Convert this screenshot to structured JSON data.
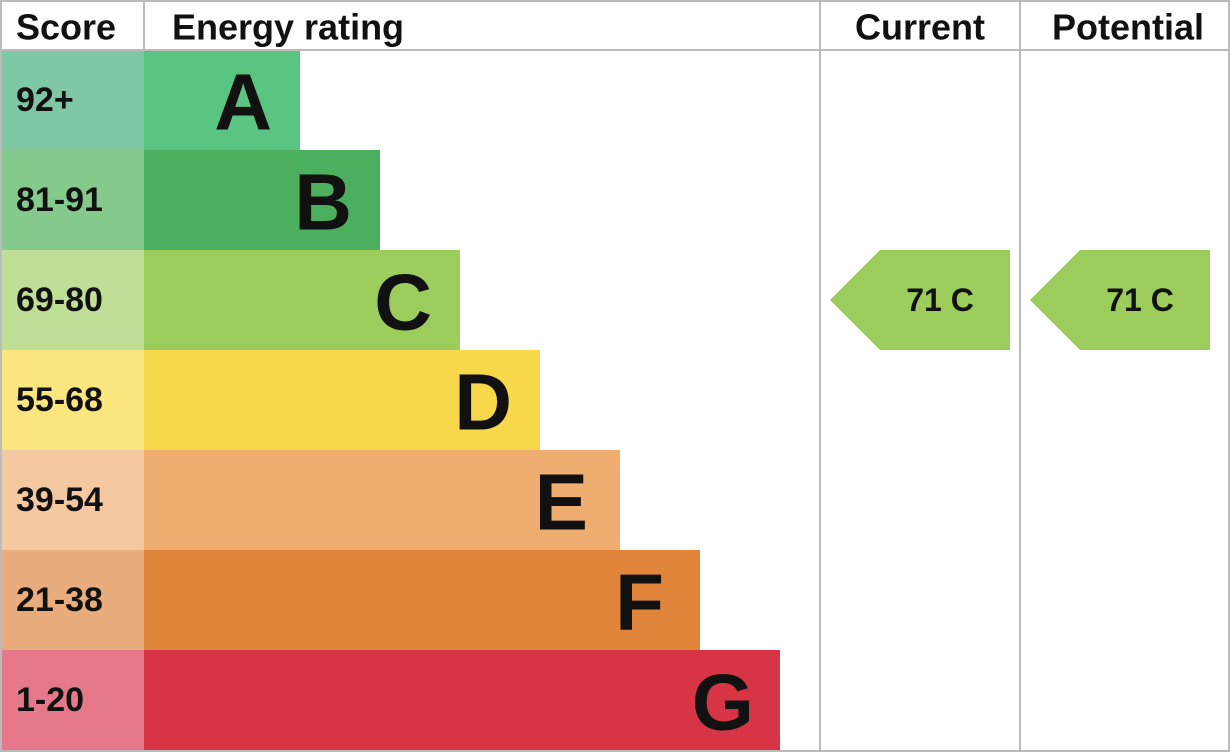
{
  "header": {
    "score": "Score",
    "rating": "Energy rating",
    "current": "Current",
    "potential": "Potential"
  },
  "bands": [
    {
      "score": "92+",
      "letter": "A"
    },
    {
      "score": "81-91",
      "letter": "B"
    },
    {
      "score": "69-80",
      "letter": "C"
    },
    {
      "score": "55-68",
      "letter": "D"
    },
    {
      "score": "39-54",
      "letter": "E"
    },
    {
      "score": "21-38",
      "letter": "F"
    },
    {
      "score": "1-20",
      "letter": "G"
    }
  ],
  "current": {
    "rating": "71 C"
  },
  "potential": {
    "rating": "71 C"
  }
}
